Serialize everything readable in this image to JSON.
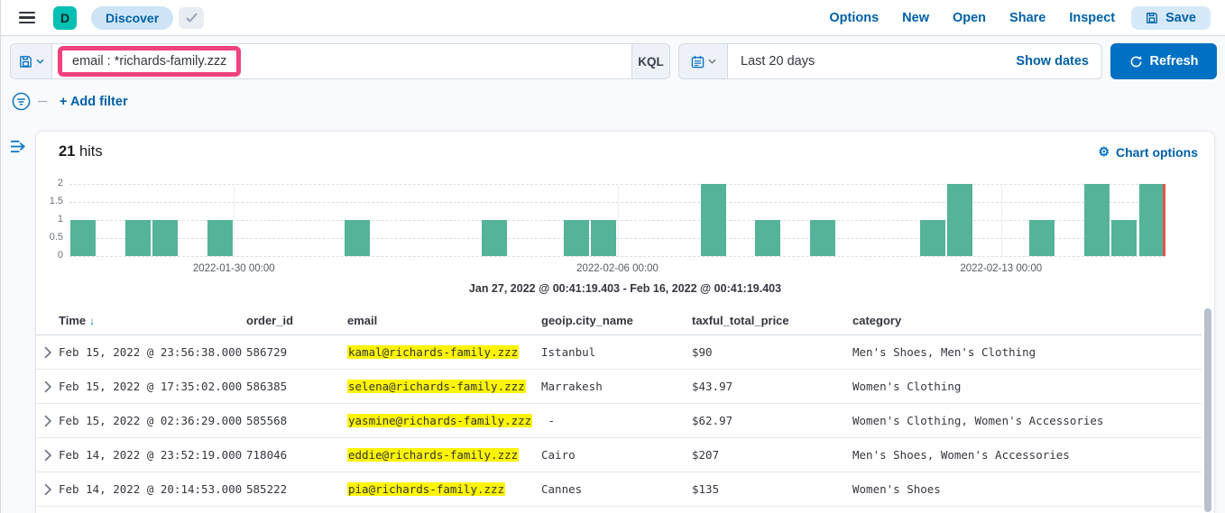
{
  "header": {
    "app_initial": "D",
    "breadcrumb": "Discover",
    "nav": [
      "Options",
      "New",
      "Open",
      "Share",
      "Inspect"
    ],
    "save_label": "Save"
  },
  "query_bar": {
    "query": "email : *richards-family.zzz",
    "language_button": "KQL"
  },
  "time_picker": {
    "value": "Last 20 days",
    "show_dates_label": "Show dates",
    "refresh_label": "Refresh"
  },
  "filter_bar": {
    "add_filter_label": "+ Add filter"
  },
  "results": {
    "hits_count": "21",
    "hits_label": " hits",
    "chart_options_label": "Chart options"
  },
  "colors": {
    "bar_color": "#54B399",
    "now_marker_color": "#E0564B",
    "annotation_pink": "#F0427C",
    "primary_blue": "#0071C2",
    "link_blue": "#0061A6",
    "highlight_yellow": "#FCF403"
  },
  "chart_data": {
    "type": "bar",
    "title": "",
    "ylabel": "",
    "xlabel": "",
    "ylim": [
      0,
      2
    ],
    "y_ticks": [
      0,
      0.5,
      1,
      1.5,
      2
    ],
    "grid": true,
    "bucket_interval": "12h",
    "buckets_total": 40,
    "x_axis_ticks": [
      "2022-01-30 00:00",
      "2022-02-06 00:00",
      "2022-02-13 00:00"
    ],
    "x_tick_buckets": [
      6,
      20,
      34
    ],
    "time_range_label": "Jan 27, 2022 @ 00:41:19.403 - Feb 16, 2022 @ 00:41:19.403",
    "bars": [
      {
        "time": "2022-01-27 00:00",
        "bucket": 0,
        "count": 1
      },
      {
        "time": "2022-01-28 00:00",
        "bucket": 2,
        "count": 1
      },
      {
        "time": "2022-01-28 12:00",
        "bucket": 3,
        "count": 1
      },
      {
        "time": "2022-01-29 12:00",
        "bucket": 5,
        "count": 1
      },
      {
        "time": "2022-02-01 00:00",
        "bucket": 10,
        "count": 1
      },
      {
        "time": "2022-02-03 12:00",
        "bucket": 15,
        "count": 1
      },
      {
        "time": "2022-02-05 00:00",
        "bucket": 18,
        "count": 1
      },
      {
        "time": "2022-02-05 12:00",
        "bucket": 19,
        "count": 1
      },
      {
        "time": "2022-02-07 12:00",
        "bucket": 23,
        "count": 2
      },
      {
        "time": "2022-02-08 12:00",
        "bucket": 25,
        "count": 1
      },
      {
        "time": "2022-02-09 12:00",
        "bucket": 27,
        "count": 1
      },
      {
        "time": "2022-02-11 12:00",
        "bucket": 31,
        "count": 1
      },
      {
        "time": "2022-02-12 00:00",
        "bucket": 32,
        "count": 2
      },
      {
        "time": "2022-02-13 12:00",
        "bucket": 35,
        "count": 1
      },
      {
        "time": "2022-02-14 12:00",
        "bucket": 37,
        "count": 2
      },
      {
        "time": "2022-02-15 00:00",
        "bucket": 38,
        "count": 1
      },
      {
        "time": "2022-02-15 12:00",
        "bucket": 39,
        "count": 2
      }
    ]
  },
  "table": {
    "columns": [
      "Time",
      "order_id",
      "email",
      "geoip.city_name",
      "taxful_total_price",
      "category"
    ],
    "sorted_column": "Time",
    "sort_direction": "desc",
    "rows": [
      {
        "time": "Feb 15, 2022 @ 23:56:38.000",
        "order_id": "586729",
        "email": "kamal@richards-family.zzz",
        "city": "Istanbul",
        "price": "$90",
        "category": "Men's Shoes, Men's Clothing"
      },
      {
        "time": "Feb 15, 2022 @ 17:35:02.000",
        "order_id": "586385",
        "email": "selena@richards-family.zzz",
        "city": "Marrakesh",
        "price": "$43.97",
        "category": "Women's Clothing"
      },
      {
        "time": "Feb 15, 2022 @ 02:36:29.000",
        "order_id": "585568",
        "email": "yasmine@richards-family.zzz",
        "city": " - ",
        "price": "$62.97",
        "category": "Women's Clothing, Women's Accessories"
      },
      {
        "time": "Feb 14, 2022 @ 23:52:19.000",
        "order_id": "718046",
        "email": "eddie@richards-family.zzz",
        "city": "Cairo",
        "price": "$207",
        "category": "Men's Shoes, Women's Accessories"
      },
      {
        "time": "Feb 14, 2022 @ 20:14:53.000",
        "order_id": "585222",
        "email": "pia@richards-family.zzz",
        "city": "Cannes",
        "price": "$135",
        "category": "Women's Shoes"
      }
    ]
  }
}
